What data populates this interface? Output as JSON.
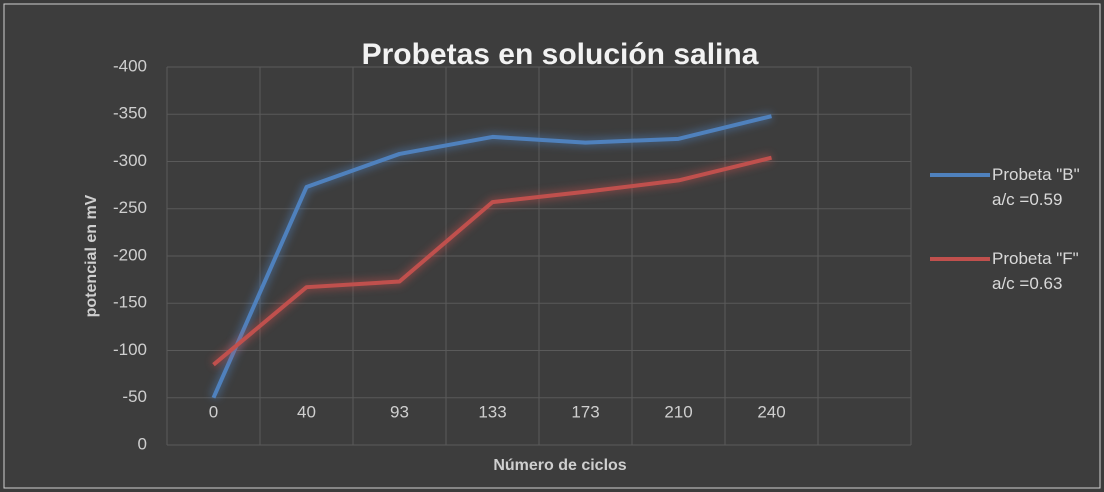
{
  "chart_data": {
    "type": "line",
    "title": "Probetas en solución salina",
    "x_label": "Número de ciclos",
    "y_label": "potencial en mV",
    "categories": [
      "0",
      "40",
      "93",
      "133",
      "173",
      "210",
      "240",
      null
    ],
    "series": [
      {
        "name": "Probeta \"B\" a/c =0.59",
        "color": "#4f81bd",
        "values": [
          -50,
          -273,
          -308,
          -326,
          -320,
          -324,
          -348,
          null
        ]
      },
      {
        "name": "Probeta \"F\" a/c =0.63",
        "color": "#c0504d",
        "values": [
          -85,
          -167,
          -173,
          -257,
          -268,
          -280,
          -304,
          null
        ]
      }
    ],
    "ylim": [
      0,
      -400
    ],
    "yticks": [
      0,
      -50,
      -100,
      -150,
      -200,
      -250,
      -300,
      -350,
      -400
    ],
    "grid": true,
    "legend": "right"
  }
}
